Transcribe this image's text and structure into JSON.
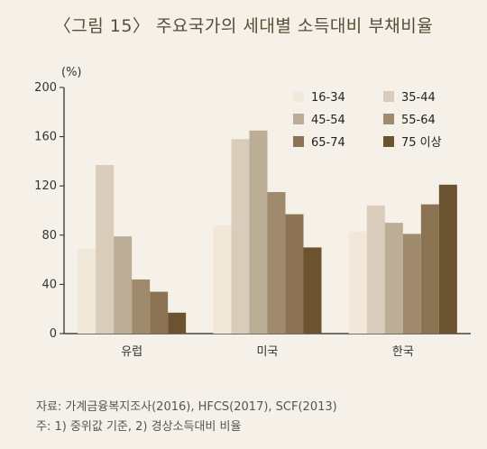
{
  "title": "〈그림 15〉 주요국가의 세대별 소득대비 부채비율",
  "source": "자료: 가계금융복지조사(2016), HFCS(2017), SCF(2013)",
  "note": "주: 1) 중위값 기준, 2) 경상소득대비 비율",
  "chart_data": {
    "type": "bar",
    "unit_label": "(%)",
    "categories": [
      "유럽",
      "미국",
      "한국"
    ],
    "ylim": [
      0,
      200
    ],
    "yticks": [
      0,
      40,
      80,
      120,
      160,
      200
    ],
    "grid": false,
    "legend_position": "top-right",
    "series": [
      {
        "name": "16-34",
        "color": "#f2e8d9",
        "values": [
          69,
          88,
          83
        ]
      },
      {
        "name": "35-44",
        "color": "#d9ccbb",
        "values": [
          137,
          158,
          104
        ]
      },
      {
        "name": "45-54",
        "color": "#bcad96",
        "values": [
          79,
          165,
          90
        ]
      },
      {
        "name": "55-64",
        "color": "#9f8a6e",
        "values": [
          44,
          115,
          81
        ]
      },
      {
        "name": "65-74",
        "color": "#8a7252",
        "values": [
          34,
          97,
          105
        ]
      },
      {
        "name": "75 이상",
        "color": "#6b532f",
        "values": [
          17,
          70,
          121
        ]
      }
    ]
  }
}
